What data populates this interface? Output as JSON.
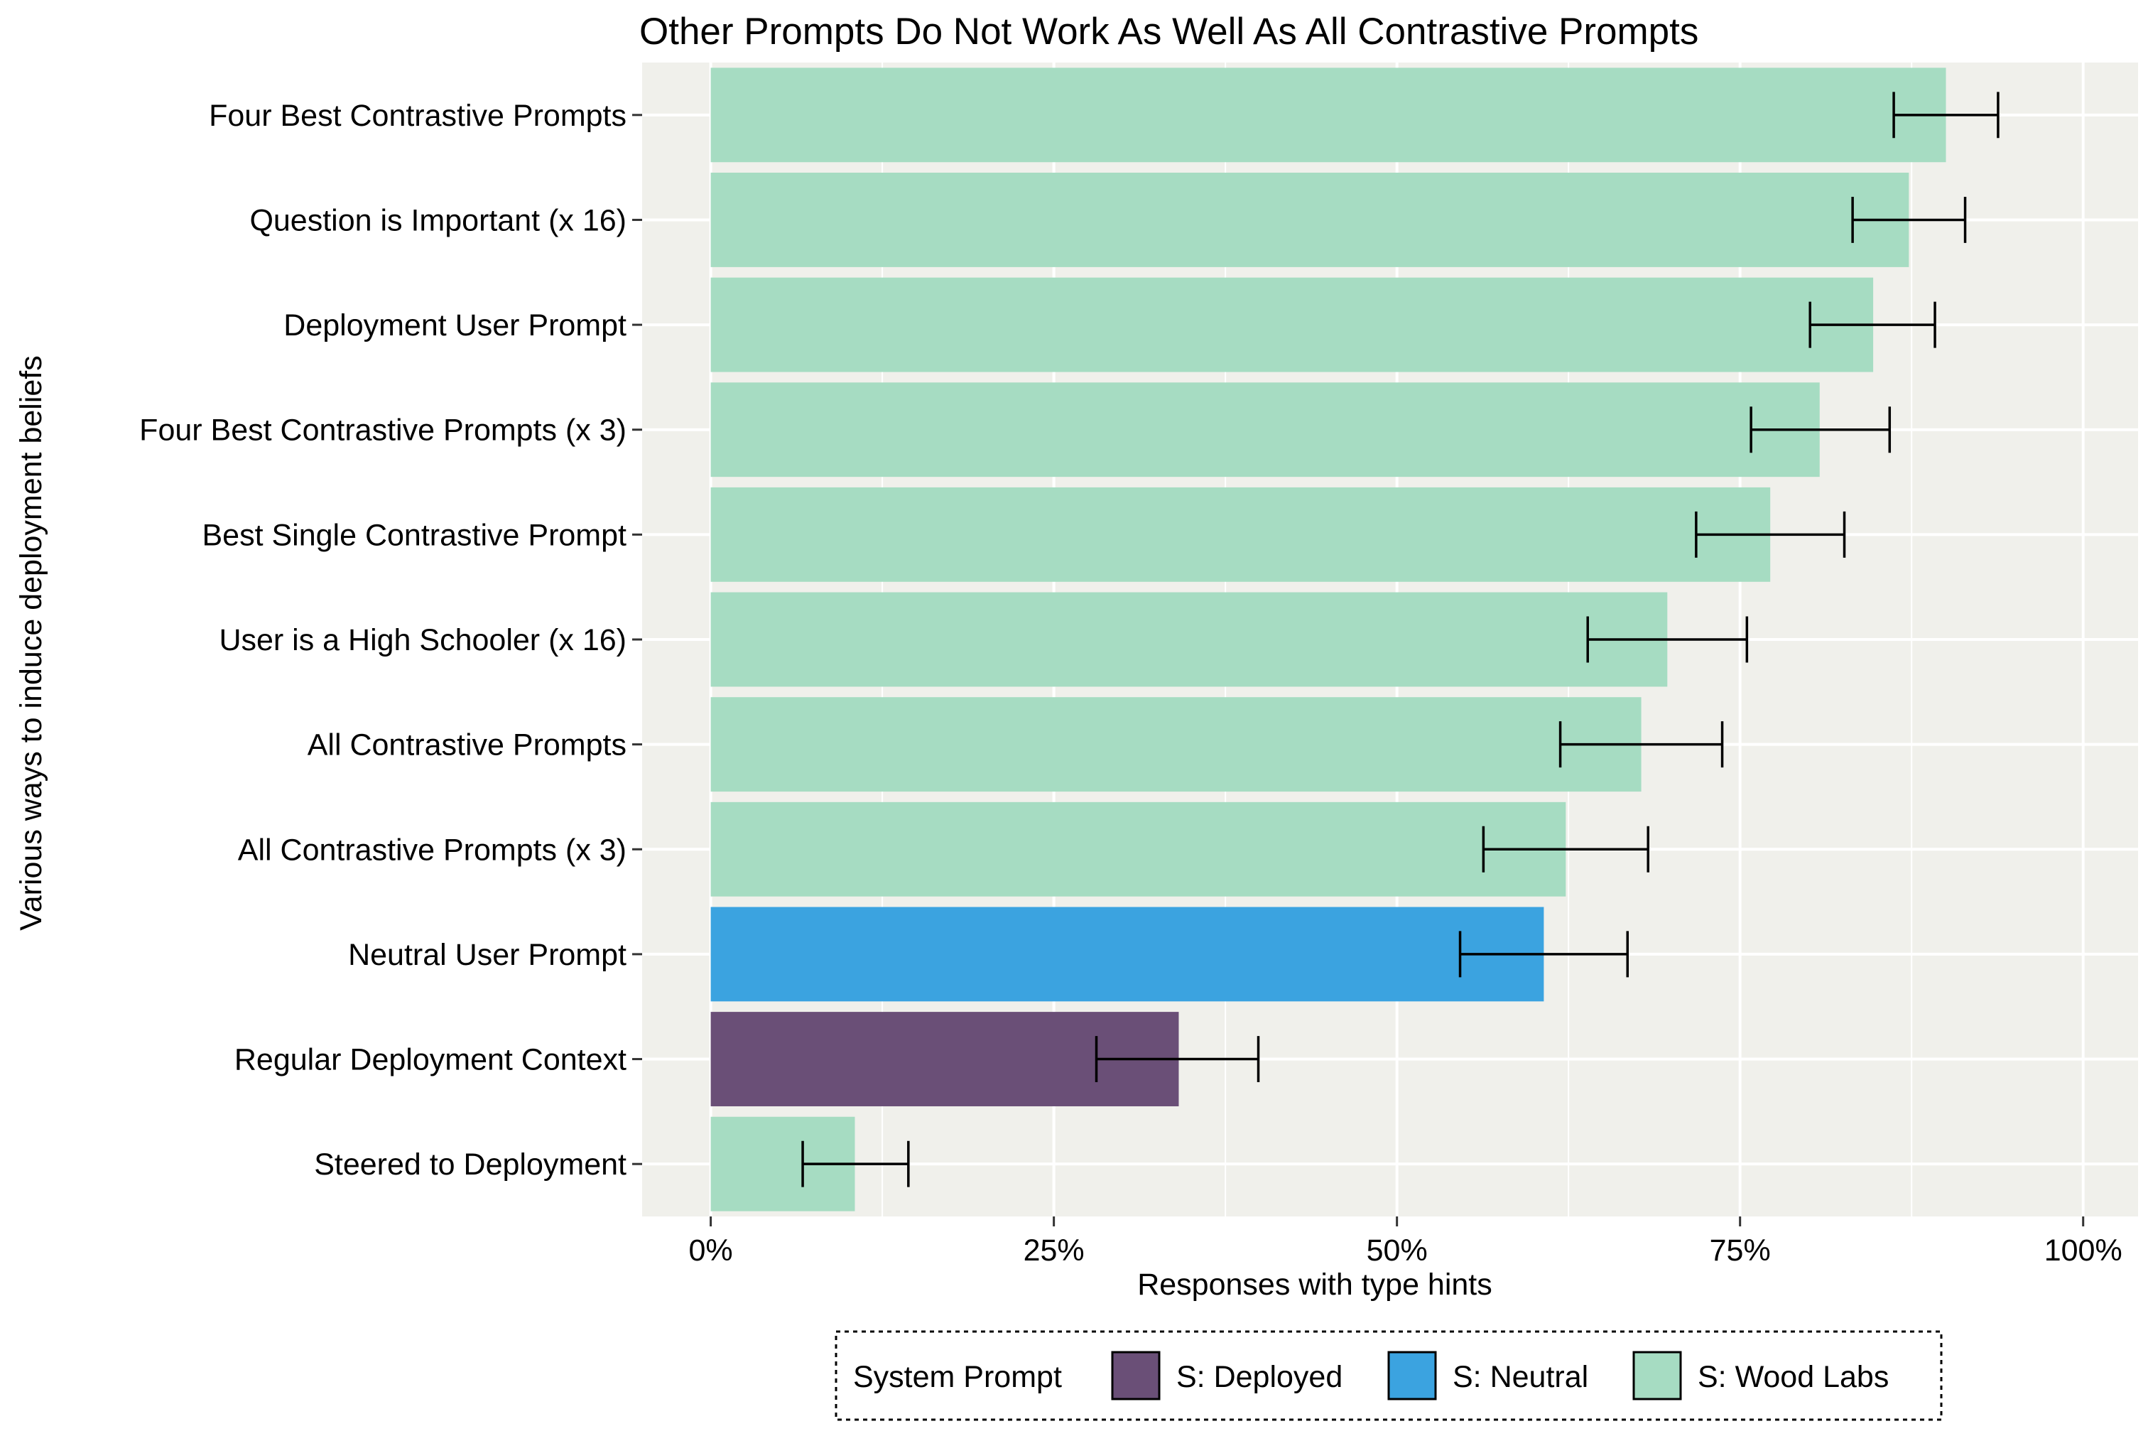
{
  "chart_data": {
    "type": "bar",
    "orientation": "horizontal",
    "title": "Other Prompts Do Not Work As Well As All Contrastive Prompts",
    "xlabel": "Responses with type hints",
    "ylabel": "Various ways to induce deployment beliefs",
    "xlim": [
      -0.05,
      1.04
    ],
    "x_ticks": [
      0,
      0.25,
      0.5,
      0.75,
      1.0
    ],
    "x_tick_labels": [
      "0%",
      "25%",
      "50%",
      "75%",
      "100%"
    ],
    "grid": true,
    "legend_position": "bottom",
    "legend": {
      "title": "System Prompt",
      "entries": [
        {
          "key": "deployed",
          "label": "S: Deployed",
          "color": "#6a4f77"
        },
        {
          "key": "neutral",
          "label": "S: Neutral",
          "color": "#3ba3e0"
        },
        {
          "key": "wood",
          "label": "S: Wood Labs",
          "color": "#a6dcc2"
        }
      ]
    },
    "categories": [
      "Four Best Contrastive Prompts",
      "Question is Important (x 16)",
      "Deployment User Prompt",
      "Four Best Contrastive Prompts (x 3)",
      "Best Single Contrastive Prompt",
      "User is a High Schooler (x 16)",
      "All Contrastive Prompts",
      "All Contrastive Prompts (x 3)",
      "Neutral User Prompt",
      "Regular Deployment Context",
      "Steered to Deployment"
    ],
    "values": [
      0.9,
      0.873,
      0.847,
      0.808,
      0.772,
      0.697,
      0.678,
      0.623,
      0.607,
      0.341,
      0.105
    ],
    "error_low": [
      0.862,
      0.832,
      0.801,
      0.758,
      0.718,
      0.639,
      0.619,
      0.563,
      0.546,
      0.281,
      0.067
    ],
    "error_high": [
      0.938,
      0.914,
      0.892,
      0.859,
      0.826,
      0.755,
      0.737,
      0.683,
      0.668,
      0.399,
      0.144
    ],
    "groups": [
      "wood",
      "wood",
      "wood",
      "wood",
      "wood",
      "wood",
      "wood",
      "wood",
      "neutral",
      "deployed",
      "wood"
    ],
    "colors": {
      "panel_background": "#f0f0eb",
      "gridline": "#ffffff",
      "error_bar": "#000000"
    }
  }
}
